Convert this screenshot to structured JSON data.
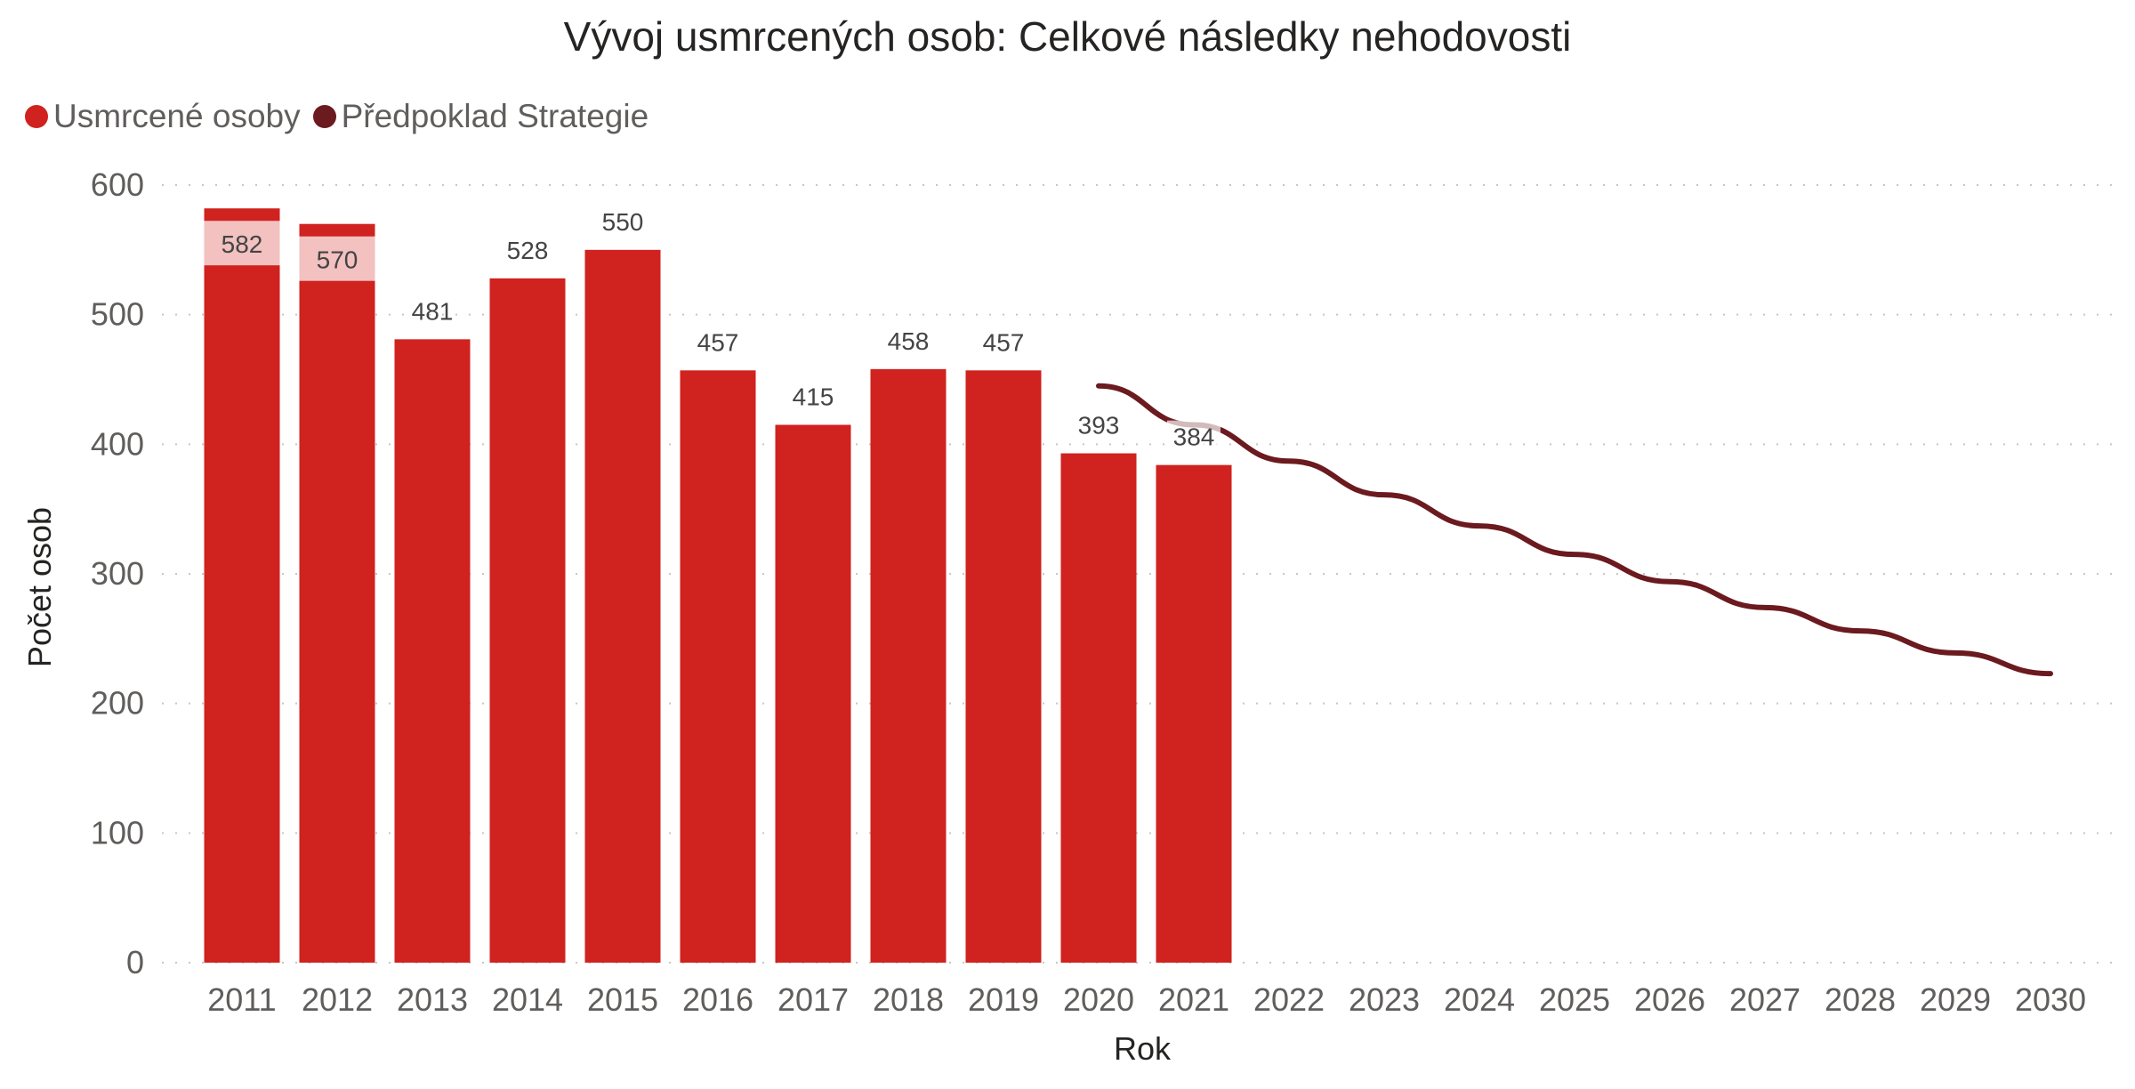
{
  "chart_data": {
    "type": "bar",
    "title": "Vývoj usmrcených osob: Celkové následky nehodovosti",
    "xlabel": "Rok",
    "ylabel": "Počet osob",
    "ylim": [
      0,
      600
    ],
    "yticks": [
      0,
      100,
      200,
      300,
      400,
      500,
      600
    ],
    "grid": true,
    "legend_position": "top-left",
    "categories": [
      "2011",
      "2012",
      "2013",
      "2014",
      "2015",
      "2016",
      "2017",
      "2018",
      "2019",
      "2020",
      "2021",
      "2022",
      "2023",
      "2024",
      "2025",
      "2026",
      "2027",
      "2028",
      "2029",
      "2030"
    ],
    "series": [
      {
        "name": "Usmrcené osoby",
        "type": "bar",
        "color": "#D0221F",
        "values": [
          582,
          570,
          481,
          528,
          550,
          457,
          415,
          458,
          457,
          393,
          384,
          null,
          null,
          null,
          null,
          null,
          null,
          null,
          null,
          null
        ],
        "data_labels": true
      },
      {
        "name": "Předpoklad Strategie",
        "type": "line",
        "color": "#6B1A1F",
        "values": [
          null,
          null,
          null,
          null,
          null,
          null,
          null,
          null,
          null,
          445,
          415,
          387,
          361,
          337,
          315,
          294,
          274,
          256,
          239,
          223
        ],
        "data_labels": false
      }
    ]
  },
  "legend": {
    "items": [
      {
        "label": "Usmrcené osoby",
        "color": "#D0221F"
      },
      {
        "label": "Předpoklad Strategie",
        "color": "#6B1A1F"
      }
    ]
  }
}
